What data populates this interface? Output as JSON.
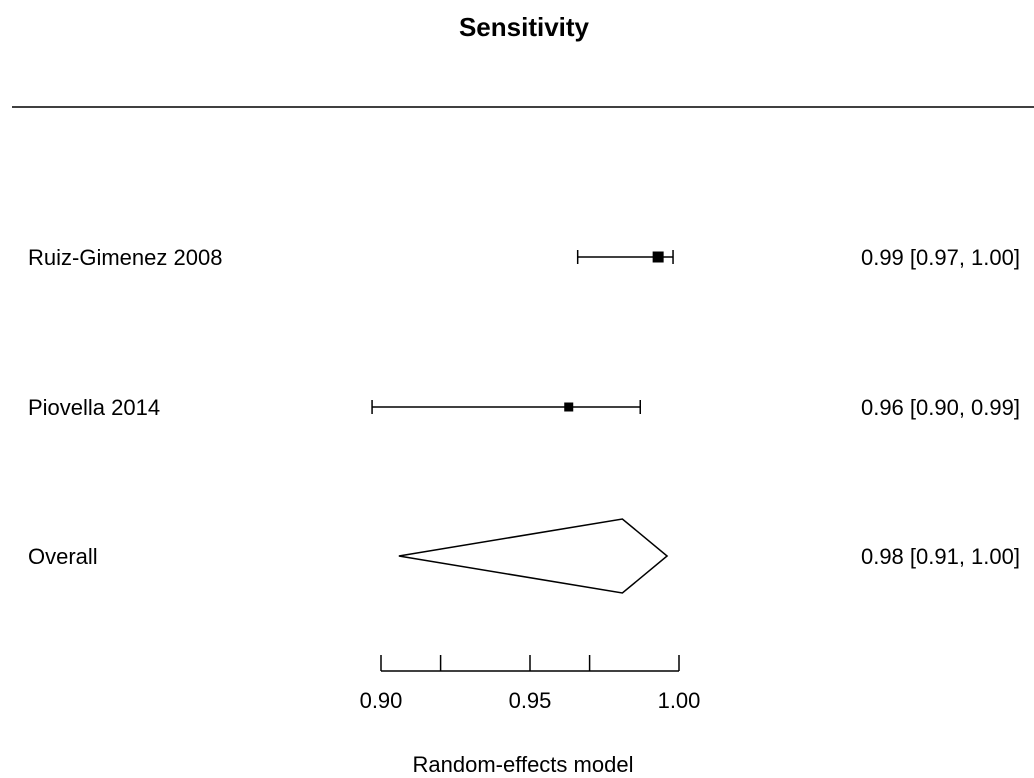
{
  "chart_data": {
    "type": "forest",
    "title": "Sensitivity",
    "xlabel": "Random-effects model",
    "xlim": [
      0.9,
      1.0
    ],
    "ticks": [
      {
        "value": 0.9,
        "label": "0.90"
      },
      {
        "value": 0.92,
        "label": ""
      },
      {
        "value": 0.95,
        "label": "0.95"
      },
      {
        "value": 0.97,
        "label": ""
      },
      {
        "value": 1.0,
        "label": "1.00"
      }
    ],
    "studies": [
      {
        "name": "Ruiz-Gimenez 2008",
        "estimate": 0.993,
        "lower": 0.966,
        "upper": 0.998,
        "ci_text": "0.99 [0.97, 1.00]"
      },
      {
        "name": "Piovella 2014",
        "estimate": 0.963,
        "lower": 0.897,
        "upper": 0.987,
        "ci_text": "0.96 [0.90, 0.99]"
      }
    ],
    "overall": {
      "name": "Overall",
      "estimate": 0.981,
      "lower": 0.906,
      "upper": 0.996,
      "ci_text": "0.98 [0.91, 1.00]"
    }
  }
}
